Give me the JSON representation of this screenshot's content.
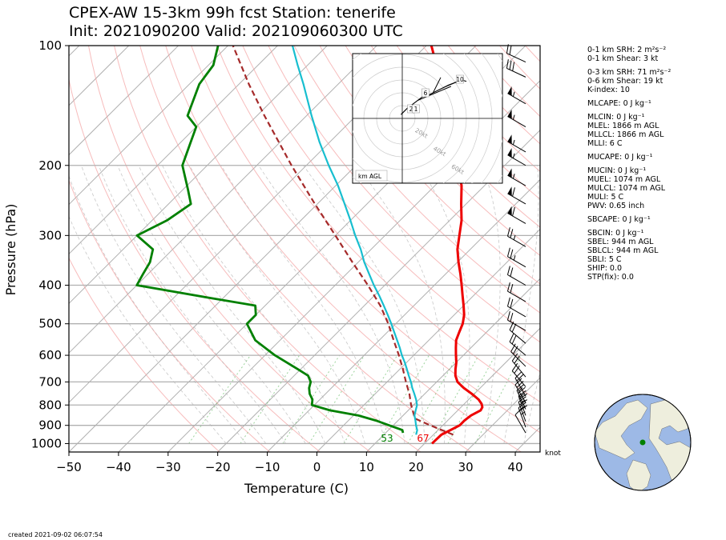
{
  "title_line1": "CPEX-AW 15-3km  99h fcst  Station: tenerife",
  "title_line2": "Init: 2021090200  Valid: 202109060300 UTC",
  "created": "created 2021-09-02 06:07:54",
  "chart_data": {
    "type": "skew-t log-p",
    "xlabel": "Temperature (C)",
    "ylabel": "Pressure (hPa)",
    "xlim": [
      -50,
      45
    ],
    "ylim_hpa": [
      1050,
      100
    ],
    "y_scale": "log",
    "skew_deg": 45,
    "x_ticks": [
      -50,
      -40,
      -30,
      -20,
      -10,
      0,
      10,
      20,
      30,
      40
    ],
    "y_ticks": [
      100,
      200,
      300,
      400,
      500,
      600,
      700,
      800,
      900,
      1000
    ],
    "surface_temp_label": "67",
    "surface_dewpoint_label": "53",
    "wind_unit_label": "knot",
    "colors": {
      "temperature": "#ee0000",
      "dewpoint": "#008000",
      "wetbulb": "#17becf",
      "parcel": "#a52a2a",
      "dry_adiabat": "#f4a0a0",
      "moist_adiabat": "#b0b0b0",
      "mixing_ratio": "#5cb85c",
      "isotherm": "#b0b0b0"
    },
    "temperature": [
      [
        1000,
        21.5
      ],
      [
        950,
        21.6
      ],
      [
        925,
        22.5
      ],
      [
        900,
        23.4
      ],
      [
        875,
        23.4
      ],
      [
        850,
        23.7
      ],
      [
        825,
        24.6
      ],
      [
        810,
        24.3
      ],
      [
        795,
        23.5
      ],
      [
        775,
        22.0
      ],
      [
        750,
        19.5
      ],
      [
        725,
        16.7
      ],
      [
        700,
        14.2
      ],
      [
        675,
        12.5
      ],
      [
        650,
        11.2
      ],
      [
        625,
        10.0
      ],
      [
        600,
        8.5
      ],
      [
        575,
        7.0
      ],
      [
        550,
        5.5
      ],
      [
        525,
        4.5
      ],
      [
        500,
        3.5
      ],
      [
        475,
        2.0
      ],
      [
        450,
        0.0
      ],
      [
        425,
        -2.2
      ],
      [
        400,
        -4.5
      ],
      [
        375,
        -7.0
      ],
      [
        350,
        -9.8
      ],
      [
        325,
        -12.6
      ],
      [
        300,
        -15.0
      ],
      [
        275,
        -17.6
      ],
      [
        250,
        -21.0
      ],
      [
        225,
        -24.6
      ],
      [
        200,
        -29.5
      ],
      [
        175,
        -35.5
      ],
      [
        150,
        -42.0
      ],
      [
        125,
        -49.0
      ],
      [
        112,
        -54.0
      ],
      [
        100,
        -59.0
      ]
    ],
    "dewpoint": [
      [
        940,
        13.5
      ],
      [
        925,
        12.8
      ],
      [
        900,
        9.2
      ],
      [
        875,
        5.5
      ],
      [
        850,
        1.0
      ],
      [
        825,
        -5.8
      ],
      [
        800,
        -10.5
      ],
      [
        775,
        -11.5
      ],
      [
        750,
        -13.2
      ],
      [
        725,
        -14.5
      ],
      [
        700,
        -15.4
      ],
      [
        675,
        -17.2
      ],
      [
        650,
        -20.6
      ],
      [
        600,
        -28.0
      ],
      [
        550,
        -35.0
      ],
      [
        500,
        -40.0
      ],
      [
        475,
        -40.0
      ],
      [
        450,
        -42.0
      ],
      [
        430,
        -53.0
      ],
      [
        400,
        -70.0
      ],
      [
        375,
        -71.0
      ],
      [
        350,
        -72.0
      ],
      [
        325,
        -74.0
      ],
      [
        300,
        -80.0
      ],
      [
        275,
        -77.0
      ],
      [
        250,
        -75.5
      ],
      [
        230,
        -79.0
      ],
      [
        200,
        -85.0
      ],
      [
        175,
        -88.0
      ],
      [
        160,
        -90.0
      ],
      [
        150,
        -94.0
      ],
      [
        125,
        -98.0
      ],
      [
        112,
        -99.0
      ],
      [
        100,
        -102.0
      ]
    ],
    "wetbulb": [
      [
        950,
        16.5
      ],
      [
        925,
        15.8
      ],
      [
        900,
        14.6
      ],
      [
        875,
        13.5
      ],
      [
        850,
        12.3
      ],
      [
        825,
        11.5
      ],
      [
        800,
        10.7
      ],
      [
        775,
        9.4
      ],
      [
        750,
        7.9
      ],
      [
        725,
        6.3
      ],
      [
        700,
        4.8
      ],
      [
        675,
        3.1
      ],
      [
        650,
        1.4
      ],
      [
        625,
        -0.4
      ],
      [
        600,
        -2.4
      ],
      [
        575,
        -4.3
      ],
      [
        550,
        -6.4
      ],
      [
        525,
        -8.6
      ],
      [
        500,
        -10.9
      ],
      [
        475,
        -13.4
      ],
      [
        450,
        -16.1
      ],
      [
        425,
        -19.0
      ],
      [
        400,
        -22.2
      ],
      [
        375,
        -25.4
      ],
      [
        350,
        -28.8
      ],
      [
        325,
        -32.1
      ],
      [
        300,
        -36.0
      ],
      [
        275,
        -40.0
      ],
      [
        250,
        -44.5
      ],
      [
        225,
        -49.5
      ],
      [
        200,
        -55.5
      ],
      [
        175,
        -62.0
      ],
      [
        150,
        -69.0
      ],
      [
        125,
        -77.0
      ],
      [
        112,
        -82.0
      ],
      [
        100,
        -87.0
      ]
    ],
    "parcel": [
      [
        950,
        24.0
      ],
      [
        900,
        17.5
      ],
      [
        865,
        13.0
      ],
      [
        800,
        9.5
      ],
      [
        750,
        6.9
      ],
      [
        700,
        3.8
      ],
      [
        650,
        0.6
      ],
      [
        600,
        -3.0
      ],
      [
        550,
        -7.1
      ],
      [
        500,
        -11.5
      ],
      [
        450,
        -16.8
      ],
      [
        400,
        -23.4
      ],
      [
        350,
        -31.2
      ],
      [
        300,
        -40.0
      ],
      [
        250,
        -50.5
      ],
      [
        200,
        -63.0
      ],
      [
        150,
        -78.5
      ],
      [
        125,
        -88.0
      ],
      [
        100,
        -99.0
      ]
    ],
    "wind_barbs": [
      {
        "p": 940,
        "speed_kt": 10,
        "dir_deg": 330
      },
      {
        "p": 910,
        "speed_kt": 25,
        "dir_deg": 340
      },
      {
        "p": 880,
        "speed_kt": 25,
        "dir_deg": 340
      },
      {
        "p": 850,
        "speed_kt": 25,
        "dir_deg": 340
      },
      {
        "p": 820,
        "speed_kt": 25,
        "dir_deg": 335
      },
      {
        "p": 790,
        "speed_kt": 25,
        "dir_deg": 330
      },
      {
        "p": 760,
        "speed_kt": 20,
        "dir_deg": 330
      },
      {
        "p": 720,
        "speed_kt": 20,
        "dir_deg": 320
      },
      {
        "p": 680,
        "speed_kt": 20,
        "dir_deg": 320
      },
      {
        "p": 640,
        "speed_kt": 20,
        "dir_deg": 315
      },
      {
        "p": 600,
        "speed_kt": 20,
        "dir_deg": 310
      },
      {
        "p": 560,
        "speed_kt": 20,
        "dir_deg": 310
      },
      {
        "p": 520,
        "speed_kt": 20,
        "dir_deg": 300
      },
      {
        "p": 480,
        "speed_kt": 20,
        "dir_deg": 300
      },
      {
        "p": 440,
        "speed_kt": 20,
        "dir_deg": 300
      },
      {
        "p": 400,
        "speed_kt": 20,
        "dir_deg": 300
      },
      {
        "p": 360,
        "speed_kt": 25,
        "dir_deg": 300
      },
      {
        "p": 320,
        "speed_kt": 25,
        "dir_deg": 300
      },
      {
        "p": 280,
        "speed_kt": 60,
        "dir_deg": 300
      },
      {
        "p": 250,
        "speed_kt": 60,
        "dir_deg": 300
      },
      {
        "p": 225,
        "speed_kt": 55,
        "dir_deg": 300
      },
      {
        "p": 200,
        "speed_kt": 55,
        "dir_deg": 300
      },
      {
        "p": 185,
        "speed_kt": 55,
        "dir_deg": 300
      },
      {
        "p": 160,
        "speed_kt": 55,
        "dir_deg": 300
      },
      {
        "p": 140,
        "speed_kt": 55,
        "dir_deg": 300
      },
      {
        "p": 120,
        "speed_kt": 30,
        "dir_deg": 295
      },
      {
        "p": 110,
        "speed_kt": 20,
        "dir_deg": 295
      }
    ],
    "hodograph": {
      "ring_labels": [
        "20kt",
        "40kt",
        "60kt",
        "80kt"
      ],
      "height_labels": [
        "2",
        "1",
        "6",
        "10"
      ],
      "legend": "km AGL",
      "trace": [
        [
          -1,
          3
        ],
        [
          4,
          8
        ],
        [
          8,
          11
        ],
        [
          12,
          14
        ],
        [
          16,
          17
        ],
        [
          20,
          18
        ],
        [
          24,
          20
        ],
        [
          28,
          22
        ],
        [
          32,
          24
        ],
        [
          36,
          26
        ],
        [
          41,
          28
        ],
        [
          46,
          30
        ],
        [
          50,
          29
        ]
      ],
      "shear_vectors": [
        [
          [
            12,
            14
          ],
          [
            38,
            25
          ]
        ],
        [
          [
            32,
            24
          ],
          [
            46,
            30
          ]
        ],
        [
          [
            24,
            20
          ],
          [
            30,
            32
          ]
        ]
      ]
    }
  },
  "indices": [
    "0-1 km SRH: 2 m²s⁻²",
    "0-1 km Shear: 3 kt",
    "0-3 km SRH: 71 m²s⁻²",
    "0-6 km Shear: 19 kt",
    "K-index: 10",
    "MLCAPE: 0 J kg⁻¹",
    "MLCIN: 0 J kg⁻¹",
    "MLEL: 1866 m AGL",
    "MLLCL: 1866 m AGL",
    "MLLI: 6 C",
    "MUCAPE: 0 J kg⁻¹",
    "MUCIN: 0 J kg⁻¹",
    "MUEL: 1074 m AGL",
    "MULCL: 1074 m AGL",
    "MULI: 5 C",
    "PWV: 0.65 inch",
    "SBCAPE: 0 J kg⁻¹",
    "SBCIN: 0 J kg⁻¹",
    "SBEL: 944 m AGL",
    "SBLCL: 944 m AGL",
    "SBLI: 5 C",
    "SHIP: 0.0",
    "STP(fix): 0.0"
  ],
  "globe": {
    "ocean_color": "#9db9e6",
    "land_color": "#eeeedd",
    "marker_color": "#008000"
  }
}
